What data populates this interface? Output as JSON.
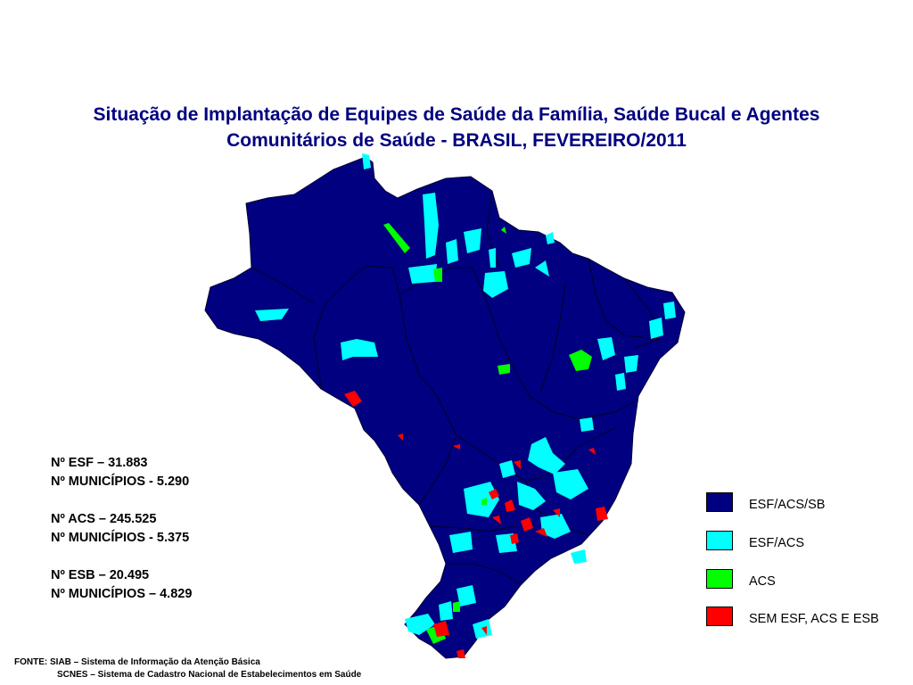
{
  "title": {
    "line1": "Situação de Implantação de Equipes de Saúde da Família, Saúde Bucal e Agentes",
    "line2": "Comunitários de Saúde - BRASIL, FEVEREIRO/2011"
  },
  "stats": {
    "esf": "Nº  ESF – 31.883",
    "esf_municipios": "Nº MUNICÍPIOS  - 5.290",
    "acs": "Nº ACS – 245.525",
    "acs_municipios": "Nº MUNICÍPIOS  - 5.375",
    "esb": "Nº ESB – 20.495",
    "esb_municipios": "Nº MUNICÍPIOS – 4.829"
  },
  "legend": [
    {
      "label": "ESF/ACS/SB",
      "color": "#000080"
    },
    {
      "label": "ESF/ACS",
      "color": "#00ffff"
    },
    {
      "label": "ACS",
      "color": "#00ff00"
    },
    {
      "label": "SEM ESF, ACS E ESB",
      "color": "#ff0000"
    }
  ],
  "source": {
    "line1": "FONTE:  SIAB – Sistema de Informação da Atenção Básica",
    "line2": "SCNES – Sistema de Cadastro Nacional de Estabelecimentos em Saúde"
  },
  "map_colors": {
    "fill": "#000080",
    "border": "#000033",
    "esf_acs": "#00ffff",
    "acs": "#00ff00",
    "none": "#ff0000"
  }
}
